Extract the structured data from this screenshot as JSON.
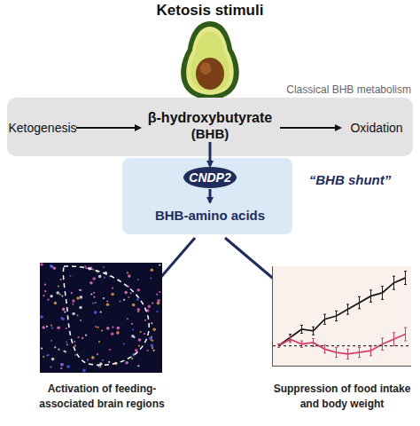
{
  "header": {
    "title": "Ketosis stimuli"
  },
  "metabolism_box": {
    "label": "Classical BHB metabolism",
    "left": "Ketogenesis",
    "center": "β-hydroxybutyrate",
    "center_sub": "(BHB)",
    "right": "Oxidation"
  },
  "shunt": {
    "enzyme": "CNDP2",
    "product": "BHB-amino acids",
    "label": "“BHB shunt”"
  },
  "outcomes": [
    {
      "lines": [
        "Activation of feeding-",
        "associated brain regions"
      ]
    },
    {
      "lines": [
        "Suppression of food intake",
        "and body weight"
      ]
    }
  ],
  "chart_data": {
    "type": "line",
    "x": [
      1,
      2,
      3,
      4,
      5,
      6,
      7,
      8,
      9,
      10,
      11,
      12
    ],
    "series": [
      {
        "color": "#1a1a1a",
        "values": [
          0,
          0.25,
          0.5,
          0.45,
          0.8,
          0.9,
          1.1,
          1.3,
          1.5,
          1.6,
          1.9,
          2.05
        ],
        "error": [
          0.05,
          0.1,
          0.12,
          0.12,
          0.15,
          0.15,
          0.15,
          0.18,
          0.18,
          0.2,
          0.2,
          0.2
        ]
      },
      {
        "color": "#d1406a",
        "values": [
          0,
          0.2,
          0.05,
          0.1,
          -0.1,
          -0.2,
          -0.25,
          -0.2,
          -0.15,
          0.05,
          0.2,
          0.35
        ],
        "error": [
          0.05,
          0.1,
          0.1,
          0.12,
          0.12,
          0.15,
          0.15,
          0.15,
          0.15,
          0.18,
          0.2,
          0.2
        ]
      }
    ],
    "xlim": [
      0.5,
      12.5
    ],
    "ylim": [
      -0.6,
      2.4
    ],
    "reference_line": 0,
    "tick_labels": false,
    "grid": false
  }
}
